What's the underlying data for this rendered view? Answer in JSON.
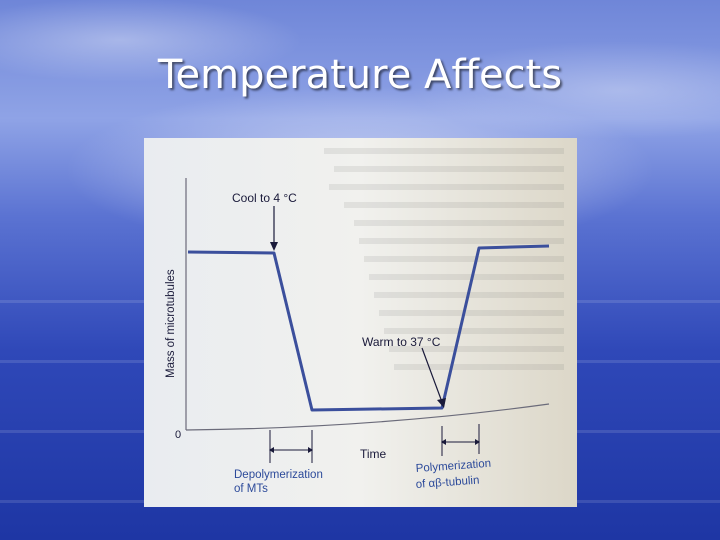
{
  "slide": {
    "title": "Temperature Affects"
  },
  "figure": {
    "y_axis_label": "Mass of microtubules",
    "x_axis_label": "Time",
    "origin_label": "0",
    "annotation_cool": "Cool to 4 °C",
    "annotation_warm": "Warm to 37 °C",
    "depolymerization_line1": "Depolymerization",
    "depolymerization_line2": "of MTs",
    "polymerization_line1": "Polymerization",
    "polymerization_line2": "of αβ-tubulin"
  },
  "colors": {
    "curve": "#3b4f9c",
    "annotation_text": "#2c4a9a"
  }
}
